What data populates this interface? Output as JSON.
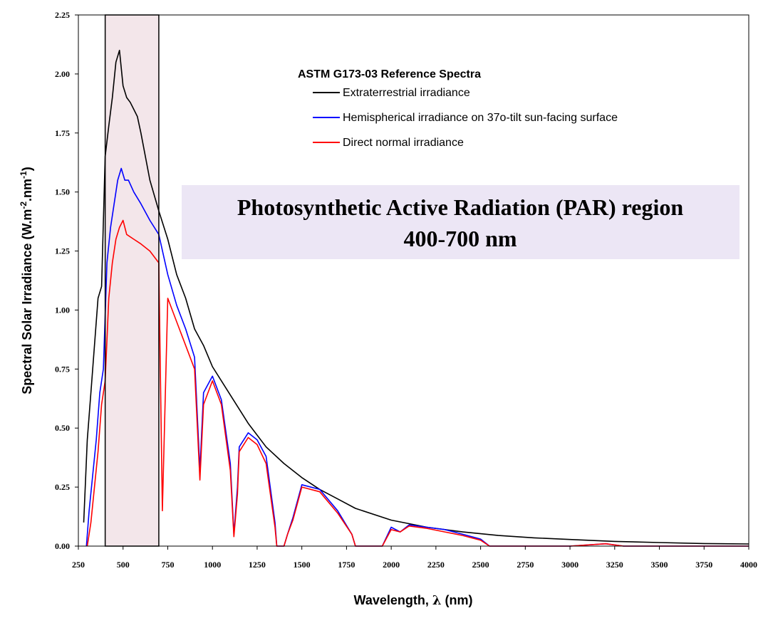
{
  "chart_data": {
    "type": "line",
    "xlabel_prefix": "Wavelength, ",
    "xlabel_symbol": "λ",
    "xlabel_suffix": " (nm)",
    "ylabel_main": "Spectral Solar Irradiance (W.m",
    "ylabel_sup1": "-2",
    "ylabel_mid": ".nm",
    "ylabel_sup2": "-1",
    "ylabel_end": ")",
    "xlim": [
      250,
      4000
    ],
    "ylim": [
      0,
      2.25
    ],
    "x_ticks": [
      "250",
      "500",
      "750",
      "1000",
      "1250",
      "1500",
      "1750",
      "2000",
      "2250",
      "2500",
      "2750",
      "3000",
      "3250",
      "3500",
      "3750",
      "4000"
    ],
    "y_ticks": [
      "0.00",
      "0.25",
      "0.50",
      "0.75",
      "1.00",
      "1.25",
      "1.50",
      "1.75",
      "2.00",
      "2.25"
    ],
    "legend_title": "ASTM G173-03 Reference Spectra",
    "legend_placement": "top-center",
    "grid": false,
    "highlight_band": {
      "x": [
        400,
        700
      ],
      "color": "#f3e6ea"
    },
    "banner": {
      "line1": "Photosynthetic Active Radiation (PAR) region",
      "line2": "400-700 nm",
      "background": "#ece6f5"
    },
    "series": [
      {
        "name": "Extraterrestrial irradiance",
        "color": "#000000",
        "x": [
          280,
          300,
          320,
          340,
          360,
          380,
          400,
          420,
          440,
          460,
          480,
          500,
          520,
          540,
          560,
          580,
          600,
          650,
          700,
          750,
          800,
          850,
          900,
          950,
          1000,
          1100,
          1200,
          1300,
          1400,
          1500,
          1600,
          1700,
          1800,
          2000,
          2200,
          2400,
          2600,
          2800,
          3000,
          3250,
          3500,
          3750,
          4000
        ],
        "y": [
          0.1,
          0.45,
          0.65,
          0.85,
          1.05,
          1.1,
          1.65,
          1.78,
          1.9,
          2.05,
          2.1,
          1.95,
          1.9,
          1.88,
          1.85,
          1.82,
          1.75,
          1.55,
          1.42,
          1.3,
          1.15,
          1.05,
          0.92,
          0.85,
          0.76,
          0.64,
          0.52,
          0.42,
          0.35,
          0.29,
          0.24,
          0.2,
          0.16,
          0.11,
          0.08,
          0.06,
          0.045,
          0.035,
          0.028,
          0.02,
          0.015,
          0.011,
          0.009
        ]
      },
      {
        "name": "Hemispherical irradiance on 37o-tilt sun-facing surface",
        "color": "#0000ff",
        "x": [
          295,
          310,
          330,
          350,
          370,
          390,
          410,
          430,
          450,
          470,
          490,
          510,
          530,
          560,
          600,
          650,
          700,
          750,
          800,
          850,
          900,
          930,
          950,
          1000,
          1050,
          1100,
          1120,
          1140,
          1150,
          1200,
          1250,
          1300,
          1350,
          1360,
          1400,
          1420,
          1450,
          1500,
          1600,
          1700,
          1780,
          1800,
          1950,
          2000,
          2050,
          2100,
          2200,
          2300,
          2400,
          2500,
          2550,
          3000,
          3200,
          3300,
          4000
        ],
        "y": [
          0.0,
          0.15,
          0.3,
          0.45,
          0.65,
          0.75,
          1.2,
          1.35,
          1.45,
          1.55,
          1.6,
          1.55,
          1.55,
          1.5,
          1.45,
          1.38,
          1.32,
          1.15,
          1.02,
          0.92,
          0.8,
          0.32,
          0.65,
          0.72,
          0.62,
          0.35,
          0.05,
          0.25,
          0.42,
          0.48,
          0.45,
          0.38,
          0.1,
          0.0,
          0.0,
          0.05,
          0.12,
          0.26,
          0.24,
          0.15,
          0.05,
          0.0,
          0.0,
          0.08,
          0.06,
          0.09,
          0.08,
          0.07,
          0.05,
          0.03,
          0.0,
          0.0,
          0.01,
          0.0,
          0.0
        ]
      },
      {
        "name": "Direct normal irradiance",
        "color": "#ff0000",
        "x": [
          300,
          320,
          340,
          360,
          380,
          400,
          420,
          440,
          460,
          480,
          500,
          520,
          560,
          600,
          650,
          700,
          720,
          750,
          800,
          850,
          900,
          930,
          950,
          1000,
          1050,
          1100,
          1120,
          1140,
          1150,
          1200,
          1250,
          1300,
          1350,
          1360,
          1400,
          1420,
          1450,
          1500,
          1600,
          1700,
          1780,
          1800,
          1950,
          2000,
          2050,
          2100,
          2200,
          2300,
          2400,
          2500,
          2550,
          3000,
          3200,
          3300,
          4000
        ],
        "y": [
          0.0,
          0.1,
          0.25,
          0.4,
          0.6,
          0.7,
          1.05,
          1.2,
          1.3,
          1.35,
          1.38,
          1.32,
          1.3,
          1.28,
          1.25,
          1.2,
          0.15,
          1.05,
          0.95,
          0.85,
          0.75,
          0.28,
          0.6,
          0.7,
          0.6,
          0.32,
          0.04,
          0.22,
          0.4,
          0.46,
          0.43,
          0.35,
          0.08,
          0.0,
          0.0,
          0.05,
          0.11,
          0.25,
          0.23,
          0.14,
          0.05,
          0.0,
          0.0,
          0.07,
          0.06,
          0.085,
          0.075,
          0.06,
          0.045,
          0.025,
          0.0,
          0.0,
          0.01,
          0.0,
          0.0
        ]
      }
    ]
  }
}
